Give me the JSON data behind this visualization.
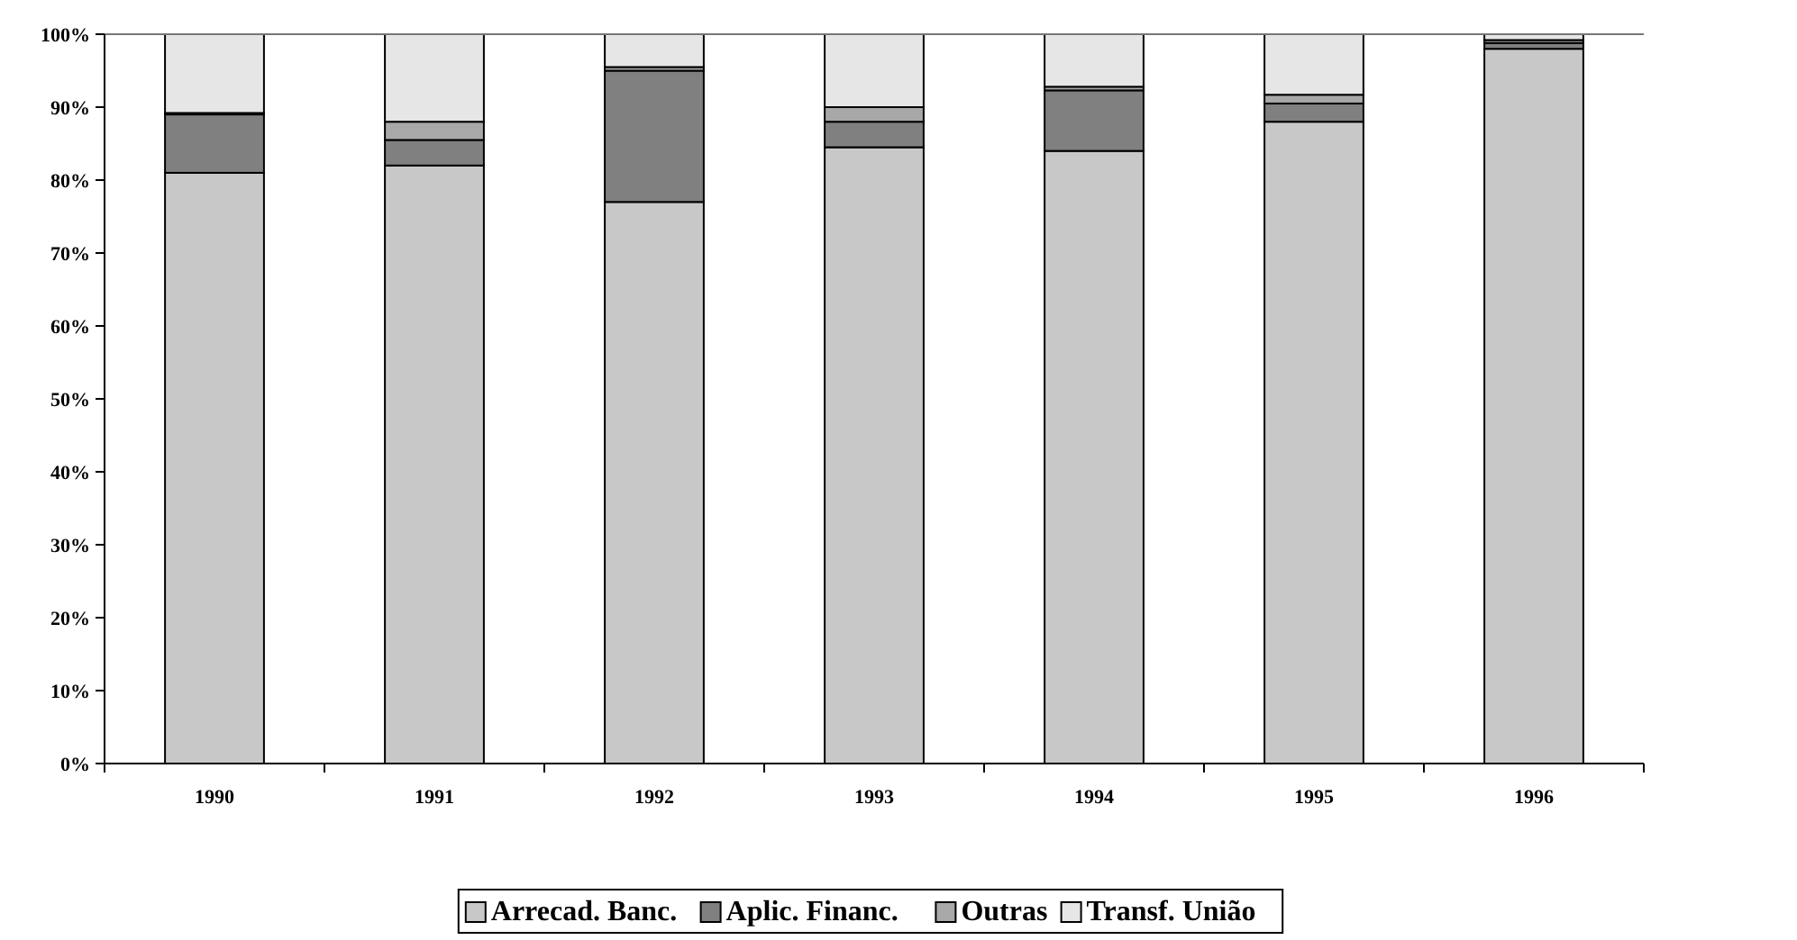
{
  "chart_data": {
    "type": "bar",
    "stacked": true,
    "categories": [
      "1990",
      "1991",
      "1992",
      "1993",
      "1994",
      "1995",
      "1996"
    ],
    "series": [
      {
        "name": "Arrecad. Banc.",
        "color": "#c8c8c8",
        "values": [
          81,
          82,
          77,
          84.5,
          84,
          88,
          98
        ]
      },
      {
        "name": "Aplic. Financ.",
        "color": "#808080",
        "values": [
          8,
          3.5,
          18,
          3.5,
          8.3,
          2.5,
          0.8
        ]
      },
      {
        "name": "Outras",
        "color": "#a8a8a8",
        "values": [
          0.2,
          2.5,
          0.5,
          2,
          0.5,
          1.2,
          0.4
        ]
      },
      {
        "name": "Transf. União",
        "color": "#e6e6e6",
        "values": [
          10.8,
          12,
          4.5,
          10,
          7.2,
          8.3,
          0.8
        ]
      }
    ],
    "ylim": [
      0,
      100
    ],
    "yticks": [
      {
        "value": 0,
        "label": "0%"
      },
      {
        "value": 10,
        "label": "10%"
      },
      {
        "value": 20,
        "label": "20%"
      },
      {
        "value": 30,
        "label": "30%"
      },
      {
        "value": 40,
        "label": "40%"
      },
      {
        "value": 50,
        "label": "50%"
      },
      {
        "value": 60,
        "label": "60%"
      },
      {
        "value": 70,
        "label": "70%"
      },
      {
        "value": 80,
        "label": "80%"
      },
      {
        "value": 90,
        "label": "90%"
      },
      {
        "value": 100,
        "label": "100%"
      }
    ],
    "grid": false,
    "legend": "bottom"
  }
}
